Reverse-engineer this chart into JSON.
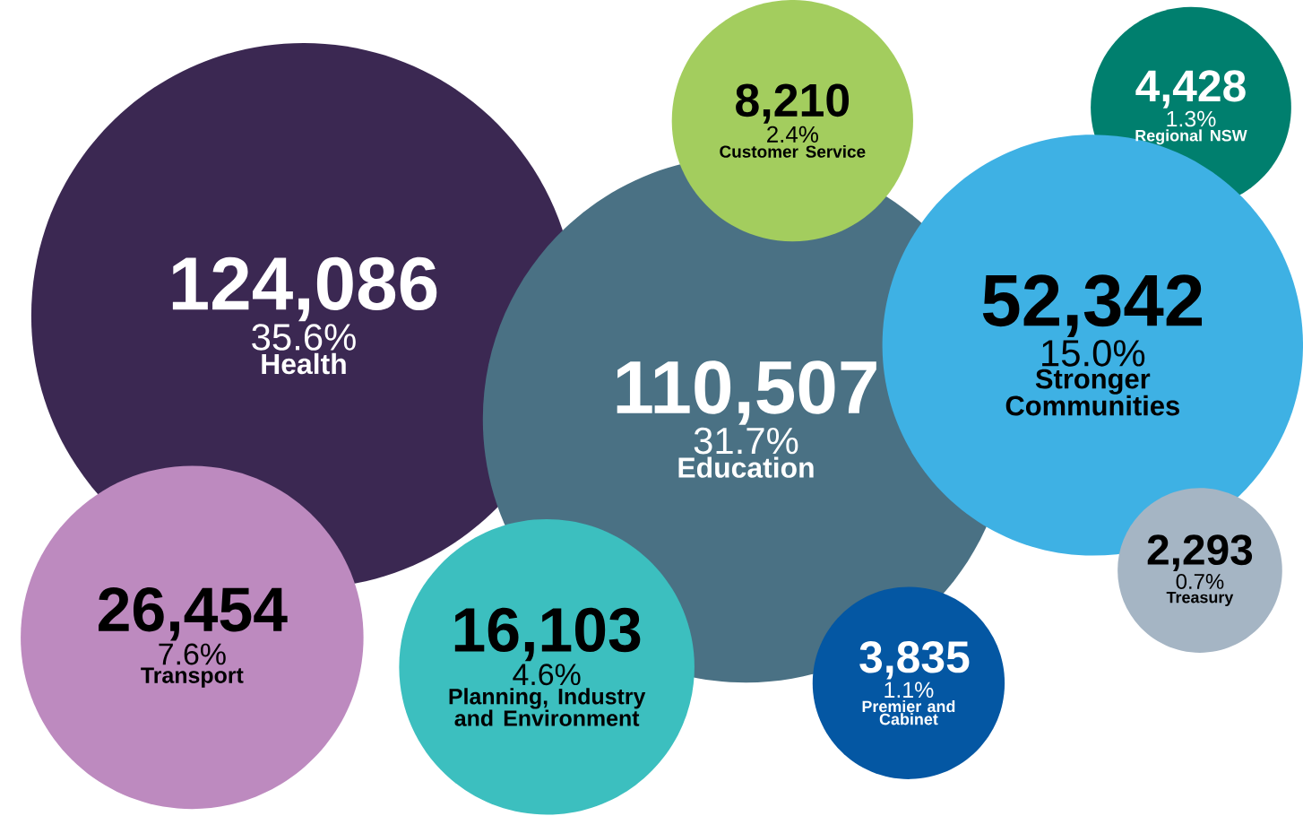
{
  "chart_data": {
    "type": "other",
    "categories": [
      "Health",
      "Education",
      "Customer Service",
      "Regional NSW",
      "Stronger Communities",
      "Transport",
      "Planning, Industry and Environment",
      "Premier and Cabinet",
      "Treasury"
    ],
    "values": [
      124086,
      110507,
      8210,
      4428,
      52342,
      26454,
      16103,
      3835,
      2293
    ],
    "colors": [
      "#3b2852",
      "#4a7184",
      "#a3cd5e",
      "#007f6e",
      "#3eb1e4",
      "#bd8abf",
      "#3cbfbf",
      "#0457a3",
      "#a5b5c4"
    ],
    "value_labels": [
      "124,086",
      "110,507",
      "8,210",
      "4,428",
      "52,342",
      "26,454",
      "16,103",
      "3,835",
      "2,293"
    ],
    "annotations": [
      {
        "text": "35.6%",
        "x": "Health"
      },
      {
        "text": "31.7%",
        "x": "Education"
      },
      {
        "text": "2.4%",
        "x": "Customer Service"
      },
      {
        "text": "1.3%",
        "x": "Regional NSW"
      },
      {
        "text": "15.0%",
        "x": "Stronger Communities"
      },
      {
        "text": "7.6%",
        "x": "Transport"
      },
      {
        "text": "4.6%",
        "x": "Planning, Industry and Environment"
      },
      {
        "text": "1.1%",
        "x": "Premier and Cabinet"
      },
      {
        "text": "0.7%",
        "x": "Treasury"
      }
    ]
  }
}
